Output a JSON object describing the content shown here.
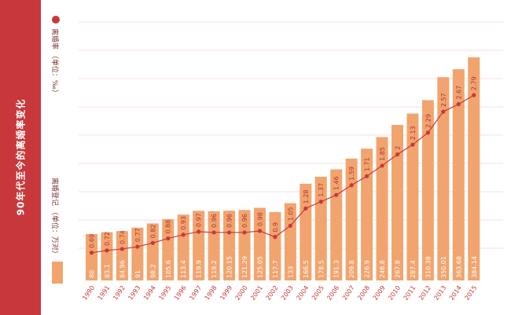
{
  "title": "90年代至今的离婚率变化",
  "colors": {
    "band": "#c8383b",
    "bar": "#f2a46e",
    "line": "#c8383b"
  },
  "legend": {
    "line_label": "离婚率 （单位：‰）",
    "bar_label": "离婚登记 （单位：万对）"
  },
  "chart_data": {
    "type": "bar",
    "title": "90年代至今的离婚率变化",
    "categories": [
      "1990",
      "1991",
      "1992",
      "1993",
      "1994",
      "1995",
      "1996",
      "1997",
      "1998",
      "1999",
      "2000",
      "2001",
      "2002",
      "2003",
      "2004",
      "2005",
      "2006",
      "2007",
      "2008",
      "2009",
      "2010",
      "2011",
      "2012",
      "2013",
      "2014",
      "2015"
    ],
    "series": [
      {
        "name": "离婚登记 （单位：万对）",
        "type": "bar",
        "values": [
          80,
          83.1,
          84.96,
          91,
          98.2,
          105.6,
          113.4,
          119.9,
          119.2,
          120.15,
          121.29,
          125.05,
          117.7,
          133,
          166.5,
          178.5,
          191.3,
          209.8,
          226.9,
          246.8,
          267.8,
          287.4,
          310.38,
          350.01,
          363.68,
          384.14
        ],
        "labels": [
          "80",
          "83.1",
          "84.96",
          "91",
          "98.2",
          "105.6",
          "113.4",
          "119.9",
          "119.2",
          "120.15",
          "121.29",
          "125.05",
          "117.7",
          "133",
          "166.5",
          "178.5",
          "191.3",
          "209.8",
          "226.9",
          "246.8",
          "267.8",
          "287.4",
          "310.38",
          "350.01",
          "363.68",
          "384.14"
        ]
      },
      {
        "name": "离婚率 （单位：‰）",
        "type": "line",
        "values": [
          0.69,
          0.72,
          0.74,
          0.77,
          0.82,
          0.88,
          0.93,
          0.97,
          0.96,
          0.96,
          0.96,
          0.98,
          0.9,
          1.05,
          1.28,
          1.37,
          1.46,
          1.59,
          1.71,
          1.85,
          2,
          2.13,
          2.29,
          2.57,
          2.67,
          2.79
        ],
        "labels": [
          "0.69",
          "0.72",
          "0.74",
          "0.77",
          "0.82",
          "0.88",
          "0.93",
          "0.97",
          "0.96",
          "0.96",
          "0.96",
          "0.98",
          "0.9",
          "1.05",
          "1.28",
          "1.37",
          "1.46",
          "1.59",
          "1.71",
          "1.85",
          "2",
          "2.13",
          "2.29",
          "2.57",
          "2.67",
          "2.79"
        ]
      }
    ],
    "grid": true,
    "legend_position": "left"
  }
}
